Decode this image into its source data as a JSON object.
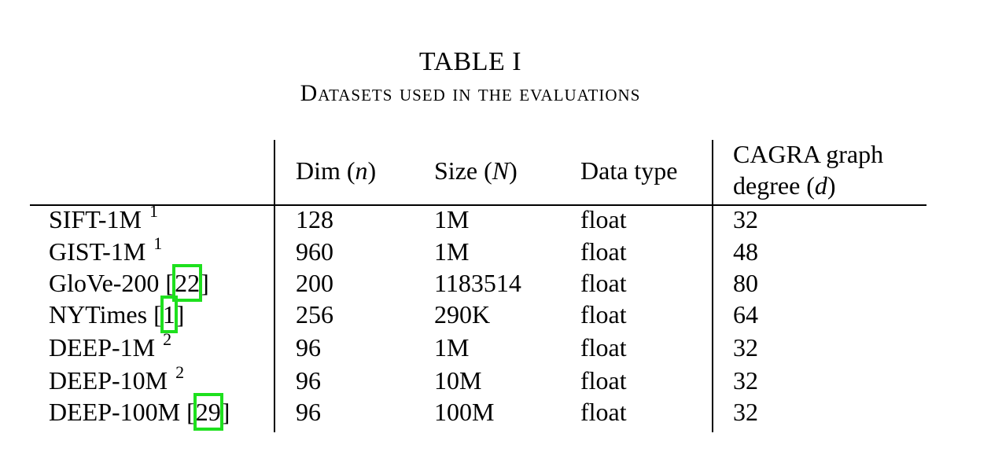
{
  "caption": {
    "label": "TABLE I",
    "title": "Datasets used in the evaluations"
  },
  "header": {
    "dim_prefix": "Dim (",
    "dim_var": "n",
    "dim_suffix": ")",
    "size_prefix": "Size (",
    "size_var": "N",
    "size_suffix": ")",
    "type": "Data type",
    "degree_line1": "CAGRA graph",
    "degree_line2_prefix": "degree (",
    "degree_var": "d",
    "degree_line2_suffix": ")"
  },
  "rows": [
    {
      "name": "SIFT-1M",
      "footnote": "1",
      "ref": "",
      "dim": "128",
      "size": "1M",
      "type": "float",
      "degree": "32"
    },
    {
      "name": "GIST-1M",
      "footnote": "1",
      "ref": "",
      "dim": "960",
      "size": "1M",
      "type": "float",
      "degree": "48"
    },
    {
      "name": "GloVe-200",
      "footnote": "",
      "ref": "22",
      "dim": "200",
      "size": "1183514",
      "type": "float",
      "degree": "80"
    },
    {
      "name": "NYTimes",
      "footnote": "",
      "ref": "1",
      "dim": "256",
      "size": "290K",
      "type": "float",
      "degree": "64"
    },
    {
      "name": "DEEP-1M",
      "footnote": "2",
      "ref": "",
      "dim": "96",
      "size": "1M",
      "type": "float",
      "degree": "32"
    },
    {
      "name": "DEEP-10M",
      "footnote": "2",
      "ref": "",
      "dim": "96",
      "size": "10M",
      "type": "float",
      "degree": "32"
    },
    {
      "name": "DEEP-100M",
      "footnote": "",
      "ref": "29",
      "dim": "96",
      "size": "100M",
      "type": "float",
      "degree": "32"
    }
  ],
  "colors": {
    "citation_highlight": "#1ee01e"
  }
}
